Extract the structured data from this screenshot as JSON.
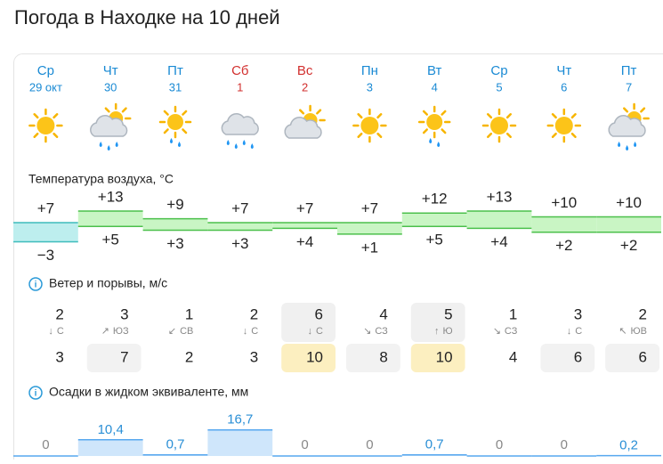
{
  "header": {
    "title": "Погода в Находке на 10 дней"
  },
  "days": [
    {
      "dow": "Ср",
      "date": "29 окт",
      "color": "#1a8ad4",
      "icon": "sun"
    },
    {
      "dow": "Чт",
      "date": "30",
      "color": "#1a8ad4",
      "icon": "cloud-sun-rain"
    },
    {
      "dow": "Пт",
      "date": "31",
      "color": "#1a8ad4",
      "icon": "sun-rain"
    },
    {
      "dow": "Сб",
      "date": "1",
      "color": "#d2302f",
      "icon": "cloud-rain"
    },
    {
      "dow": "Вс",
      "date": "2",
      "color": "#d2302f",
      "icon": "cloud-sun"
    },
    {
      "dow": "Пн",
      "date": "3",
      "color": "#1a8ad4",
      "icon": "sun"
    },
    {
      "dow": "Вт",
      "date": "4",
      "color": "#1a8ad4",
      "icon": "sun-rain"
    },
    {
      "dow": "Ср",
      "date": "5",
      "color": "#1a8ad4",
      "icon": "sun"
    },
    {
      "dow": "Чт",
      "date": "6",
      "color": "#1a8ad4",
      "icon": "sun"
    },
    {
      "dow": "Пт",
      "date": "7",
      "color": "#1a8ad4",
      "icon": "cloud-sun-rain"
    }
  ],
  "temperature": {
    "title": "Температура воздуха, °C",
    "max": [
      7,
      13,
      9,
      7,
      7,
      7,
      12,
      13,
      10,
      10
    ],
    "max_labels": [
      "+7",
      "+13",
      "+9",
      "+7",
      "+7",
      "+7",
      "+12",
      "+13",
      "+10",
      "+10"
    ],
    "min": [
      -3,
      5,
      3,
      3,
      4,
      1,
      5,
      4,
      2,
      2
    ],
    "min_labels": [
      "−3",
      "+5",
      "+3",
      "+3",
      "+4",
      "+1",
      "+5",
      "+4",
      "+2",
      "+2"
    ],
    "colors": [
      "#bdeeee",
      "#c9f5c4",
      "#c9f5c4",
      "#c9f5c4",
      "#c9f5c4",
      "#c9f5c4",
      "#c9f5c4",
      "#c9f5c4",
      "#c9f5c4",
      "#c9f5c4"
    ],
    "line_colors": [
      "#3fbcbc",
      "#4cc04c",
      "#4cc04c",
      "#4cc04c",
      "#4cc04c",
      "#4cc04c",
      "#4cc04c",
      "#4cc04c",
      "#4cc04c",
      "#4cc04c"
    ]
  },
  "wind": {
    "title": "Ветер и порывы, м/с",
    "speed": [
      2,
      3,
      1,
      2,
      6,
      4,
      5,
      1,
      3,
      2
    ],
    "arrows": [
      "↓",
      "↗",
      "↙",
      "↓",
      "↓",
      "↘",
      "↑",
      "↘",
      "↓",
      "↖"
    ],
    "direction": [
      "С",
      "ЮЗ",
      "СВ",
      "С",
      "С",
      "СЗ",
      "Ю",
      "СЗ",
      "С",
      "ЮВ"
    ],
    "gust": [
      3,
      7,
      2,
      3,
      10,
      8,
      10,
      4,
      6,
      6
    ]
  },
  "precipitation": {
    "title": "Осадки в жидком эквиваленте, мм",
    "values": [
      0,
      10.4,
      0.7,
      16.7,
      0,
      0,
      0.7,
      0,
      0,
      0.2
    ],
    "labels": [
      "0",
      "10,4",
      "0,7",
      "16,7",
      "0",
      "0",
      "0,7",
      "0",
      "0",
      "0,2"
    ]
  }
}
